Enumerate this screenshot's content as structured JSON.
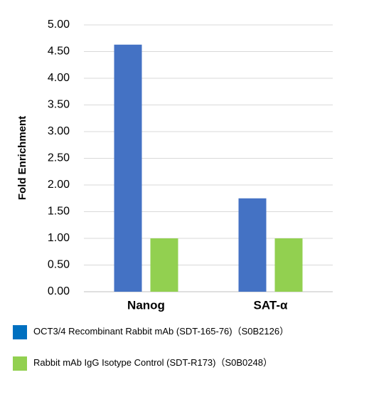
{
  "chart_data": {
    "type": "bar",
    "y_label": "Fold Enrichment",
    "categories": [
      "Nanog",
      "SAT-α"
    ],
    "series": [
      {
        "name": "OCT3/4 Recombinant Rabbit mAb (SDT-165-76)（S0B2126）",
        "color": "#4472c4",
        "values": [
          4.63,
          1.75
        ]
      },
      {
        "name": "Rabbit mAb IgG Isotype Control (SDT-R173)（S0B0248）",
        "color": "#92d050",
        "values": [
          1.0,
          1.0
        ]
      }
    ],
    "ylim": [
      0,
      5
    ],
    "yticks": [
      {
        "value": 0,
        "label": "0.00"
      },
      {
        "value": 0.5,
        "label": "0.50"
      },
      {
        "value": 1,
        "label": "1.00"
      },
      {
        "value": 1.5,
        "label": "1.50"
      },
      {
        "value": 2,
        "label": "2.00"
      },
      {
        "value": 2.5,
        "label": "2.50"
      },
      {
        "value": 3,
        "label": "3.00"
      },
      {
        "value": 3.5,
        "label": "3.50"
      },
      {
        "value": 4,
        "label": "4.00"
      },
      {
        "value": 4.5,
        "label": "4.50"
      },
      {
        "value": 5,
        "label": "5.00"
      }
    ],
    "grid": true
  }
}
